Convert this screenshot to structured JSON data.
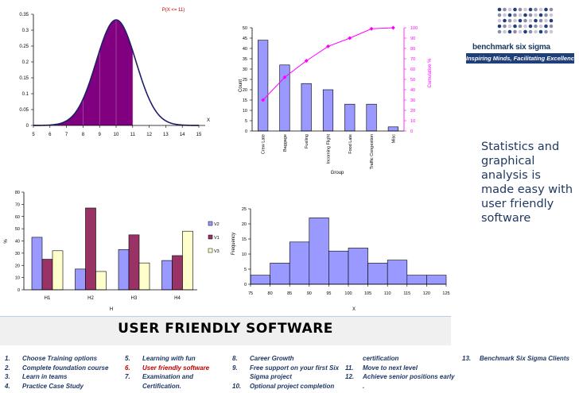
{
  "logo": {
    "name": "benchmark six sigma",
    "tagline": "Inspiring Minds, Facilitating Excellence"
  },
  "side_text": "Statistics and graphical analysis is made easy with user friendly software",
  "banner": {
    "title": "USER  FRIENDLY  SOFTWARE"
  },
  "features": {
    "col1": [
      {
        "num": "1.",
        "text": "Choose Training options",
        "color": "#1f3864"
      },
      {
        "num": "2.",
        "text": "Complete foundation course",
        "color": "#1f3864"
      },
      {
        "num": "3.",
        "text": "Learn in teams",
        "color": "#1f3864"
      },
      {
        "num": "4.",
        "text": "Practice Case Study",
        "color": "#1f3864"
      }
    ],
    "col2": [
      {
        "num": "5.",
        "text": "Learning with fun",
        "color": "#1f3864"
      },
      {
        "num": "6.",
        "text": "User friendly software",
        "color": "#c00000"
      },
      {
        "num": "7.",
        "text": "Examination  and",
        "color": "#1f3864"
      },
      {
        "num": "",
        "text": "Certification.",
        "color": "#1f3864"
      }
    ],
    "col3": [
      {
        "num": "8.",
        "text": "Career Growth",
        "color": "#1f3864"
      },
      {
        "num": "9.",
        "text": "Free support on your first Six",
        "color": "#1f3864"
      },
      {
        "num": "",
        "text": "Sigma project",
        "color": "#1f3864"
      },
      {
        "num": "10.",
        "text": "Optional project completion",
        "color": "#1f3864"
      }
    ],
    "col4": [
      {
        "num": "",
        "text": "certification",
        "color": "#1f3864"
      },
      {
        "num": "11.",
        "text": "Move to next level",
        "color": "#1f3864"
      },
      {
        "num": "12.",
        "text": "Achieve senior positions early",
        "color": "#1f3864"
      },
      {
        "num": "",
        "text": ".",
        "color": "#1f3864"
      }
    ],
    "col5": [
      {
        "num": "13.",
        "text": "Benchmark Six Sigma Clients",
        "color": "#1f3864"
      }
    ]
  },
  "chart_data": [
    {
      "type": "area",
      "title": "P(X <= 11)",
      "xlabel": "X",
      "ylabel": "",
      "xlim": [
        5,
        15
      ],
      "ylim": [
        0,
        0.35
      ],
      "x_ticks": [
        "5",
        "6",
        "7",
        "8",
        "9",
        "10",
        "11",
        "12",
        "13",
        "14",
        "15"
      ],
      "y_ticks": [
        "0",
        "0.05",
        "0.1",
        "0.15",
        "0.2",
        "0.25",
        "0.3",
        "0.35"
      ],
      "distribution": {
        "mean": 10,
        "sd": 1.2
      },
      "shaded_upto": 11,
      "curve_color": "#1f1f6b",
      "fill_color": "#800080"
    },
    {
      "type": "bar",
      "subtype": "pareto",
      "categories": [
        "Crew Late",
        "Baggage",
        "Fueling",
        "Incoming Flight",
        "Food Late",
        "Traffic Congestion",
        "Misc"
      ],
      "values": [
        44,
        32,
        23,
        20,
        13,
        13,
        2
      ],
      "cumulative_percent": [
        30,
        52,
        68,
        82,
        90,
        99,
        100
      ],
      "xlabel": "Group",
      "ylabel": "Count",
      "y2label": "Cumulative %",
      "ylim": [
        0,
        50
      ],
      "y2lim": [
        0,
        100
      ],
      "y_ticks": [
        "0",
        "5",
        "10",
        "15",
        "20",
        "25",
        "30",
        "35",
        "40",
        "45",
        "50"
      ],
      "y2_ticks": [
        "0",
        "10",
        "20",
        "30",
        "40",
        "50",
        "60",
        "70",
        "80",
        "90",
        "100"
      ],
      "bar_color": "#9999ff",
      "line_color": "#ff00ff"
    },
    {
      "type": "bar",
      "categories": [
        "H1",
        "H2",
        "H3",
        "H4"
      ],
      "series": [
        {
          "name": "V2",
          "values": [
            43,
            17,
            33,
            24
          ],
          "color": "#9999ff"
        },
        {
          "name": "V1",
          "values": [
            25,
            67,
            45,
            28
          ],
          "color": "#993366"
        },
        {
          "name": "V3",
          "values": [
            32,
            15,
            22,
            48
          ],
          "color": "#ffffcc"
        }
      ],
      "xlabel": "H",
      "ylabel": "%",
      "ylim": [
        0,
        80
      ],
      "y_ticks": [
        "0",
        "10",
        "20",
        "30",
        "40",
        "50",
        "60",
        "70",
        "80"
      ],
      "legend": "right"
    },
    {
      "type": "bar",
      "subtype": "histogram",
      "bin_edges": [
        75,
        80,
        85,
        90,
        95,
        100,
        105,
        110,
        115,
        120,
        125
      ],
      "values": [
        3,
        7,
        14,
        22,
        11,
        12,
        7,
        8,
        3,
        3
      ],
      "xlabel": "X",
      "ylabel": "Frequency",
      "ylim": [
        0,
        25
      ],
      "x_ticks": [
        "75",
        "80",
        "85",
        "90",
        "95",
        "100",
        "105",
        "110",
        "115",
        "120",
        "125"
      ],
      "y_ticks": [
        "0",
        "5",
        "10",
        "15",
        "20",
        "25"
      ],
      "bar_color": "#9999ff"
    }
  ]
}
